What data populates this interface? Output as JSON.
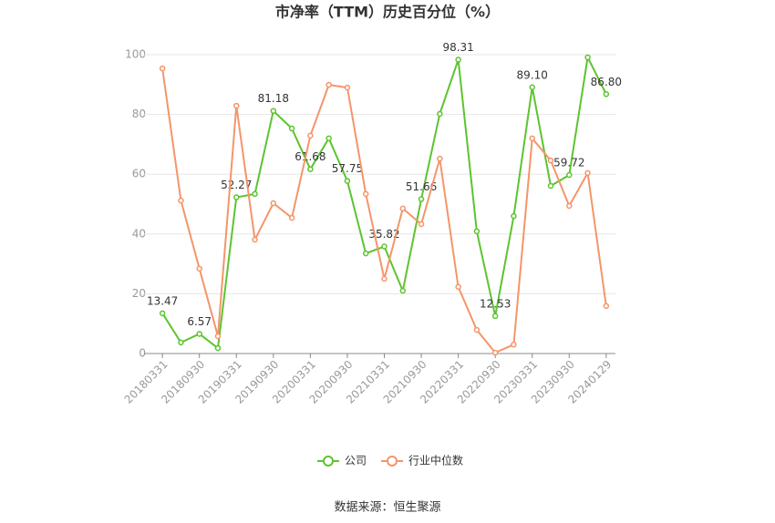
{
  "chart_data": {
    "type": "line",
    "title": "市净率（TTM）历史百分位（%）",
    "categories": [
      "20180331",
      null,
      "20180930",
      null,
      "20190331",
      null,
      "20190930",
      null,
      "20200331",
      null,
      "20200930",
      null,
      "20210331",
      null,
      "20210930",
      null,
      "20220331",
      null,
      "20220930",
      null,
      "20230331",
      null,
      "20230930",
      null,
      "20240129"
    ],
    "series": [
      {
        "name": "公司",
        "color": "#5cc42f",
        "values": [
          13.47,
          3.7,
          6.57,
          1.8,
          52.27,
          53.4,
          81.18,
          75.3,
          61.68,
          72.0,
          57.75,
          33.5,
          35.82,
          21.0,
          51.66,
          80.2,
          98.31,
          40.9,
          12.53,
          46.0,
          89.1,
          56.1,
          59.72,
          99.1,
          86.8
        ],
        "value_labels": [
          "13.47",
          null,
          "6.57",
          null,
          "52.27",
          null,
          "81.18",
          null,
          "61.68",
          null,
          "57.75",
          null,
          "35.82",
          null,
          "51.66",
          null,
          "98.31",
          null,
          "12.53",
          null,
          "89.10",
          null,
          "59.72",
          null,
          "86.80"
        ]
      },
      {
        "name": "行业中位数",
        "color": "#f4956a",
        "values": [
          95.4,
          51.2,
          28.4,
          5.8,
          82.9,
          38.1,
          50.3,
          45.4,
          72.9,
          89.9,
          89.0,
          53.4,
          25.0,
          48.5,
          43.3,
          65.2,
          22.3,
          7.9,
          0.3,
          3.0,
          72.0,
          64.6,
          49.4,
          60.4,
          15.9
        ]
      }
    ],
    "ylim": [
      0,
      100
    ],
    "yticks": [
      0,
      20,
      40,
      60,
      80,
      100
    ],
    "grid": true,
    "legend": "bottom",
    "source": "数据来源：恒生聚源"
  }
}
